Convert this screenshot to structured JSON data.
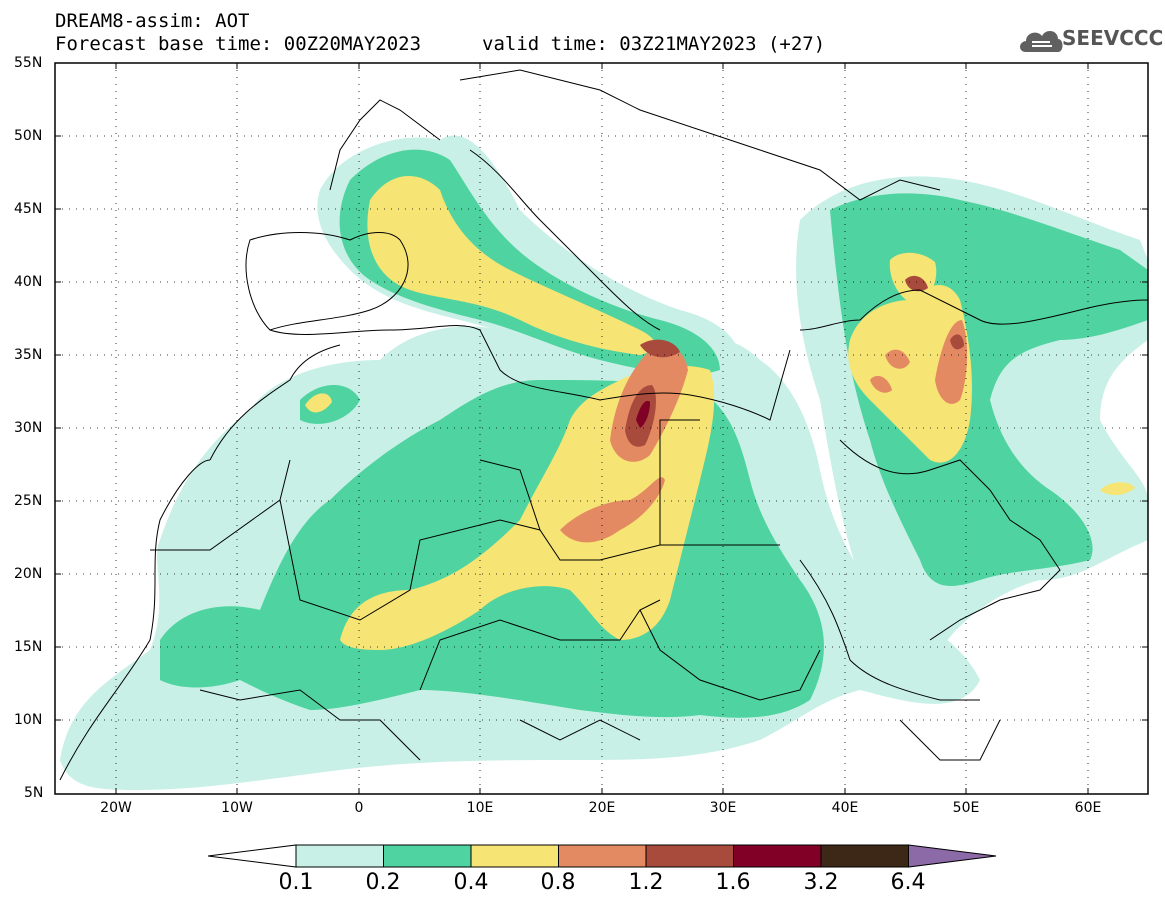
{
  "header": {
    "title_line1": "DREAM8-assim: AOT",
    "title_line2": "Forecast base time: 00Z20MAY2023",
    "valid_time": "valid time: 03Z21MAY2023 (+27)",
    "logo_text": "SEEVCCC"
  },
  "map": {
    "variable": "AOT",
    "lat_range": [
      5,
      55
    ],
    "lon_range": [
      -25,
      65
    ],
    "lat_ticks": [
      {
        "value": 55,
        "label": "55N"
      },
      {
        "value": 50,
        "label": "50N"
      },
      {
        "value": 45,
        "label": "45N"
      },
      {
        "value": 40,
        "label": "40N"
      },
      {
        "value": 35,
        "label": "35N"
      },
      {
        "value": 30,
        "label": "30N"
      },
      {
        "value": 25,
        "label": "25N"
      },
      {
        "value": 20,
        "label": "20N"
      },
      {
        "value": 15,
        "label": "15N"
      },
      {
        "value": 10,
        "label": "10N"
      },
      {
        "value": 5,
        "label": "5N"
      }
    ],
    "lon_ticks": [
      {
        "value": -20,
        "label": "20W"
      },
      {
        "value": -10,
        "label": "10W"
      },
      {
        "value": 0,
        "label": "0"
      },
      {
        "value": 10,
        "label": "10E"
      },
      {
        "value": 20,
        "label": "20E"
      },
      {
        "value": 30,
        "label": "30E"
      },
      {
        "value": 40,
        "label": "40E"
      },
      {
        "value": 50,
        "label": "50E"
      },
      {
        "value": 60,
        "label": "60E"
      }
    ],
    "gridlines": "dotted"
  },
  "colorbar": {
    "levels": [
      "0.1",
      "0.2",
      "0.4",
      "0.8",
      "1.2",
      "1.6",
      "3.2",
      "6.4"
    ],
    "colors": [
      "#ffffff",
      "#c8f0e6",
      "#4fd3a0",
      "#f6e474",
      "#e48a62",
      "#a84a3c",
      "#800026",
      "#3d2817",
      "#8c6aa8"
    ]
  }
}
